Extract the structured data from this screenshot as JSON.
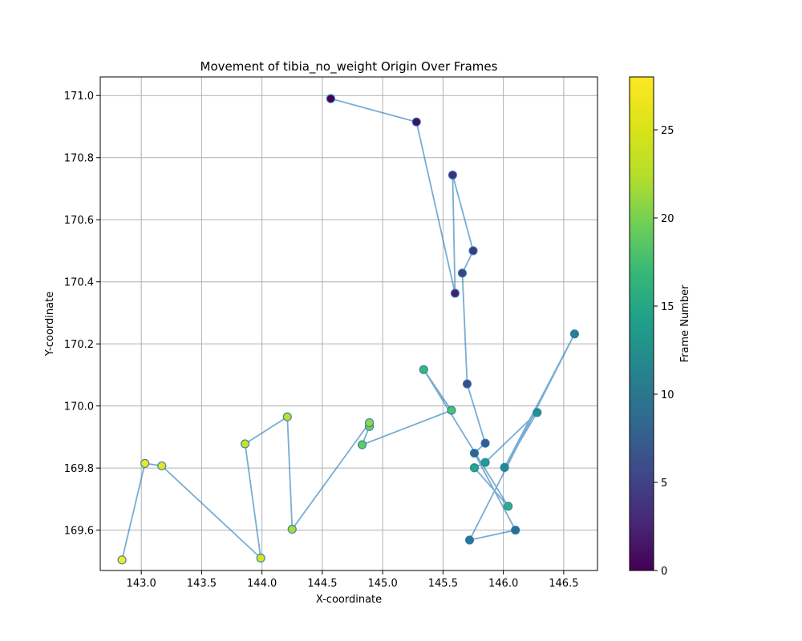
{
  "chart_data": {
    "type": "scatter",
    "title": "Movement of tibia_no_weight Origin Over Frames",
    "xlabel": "X-coordinate",
    "ylabel": "Y-coordinate",
    "xlim": [
      142.66,
      146.78
    ],
    "ylim": [
      169.47,
      171.06
    ],
    "xticks": [
      "143.0",
      "143.5",
      "144.0",
      "144.5",
      "145.0",
      "145.5",
      "146.0",
      "146.5"
    ],
    "yticks": [
      "169.6",
      "169.8",
      "170.0",
      "170.2",
      "170.4",
      "170.6",
      "170.8",
      "171.0"
    ],
    "grid": true,
    "line_color": "#1f77b4",
    "colormap": "viridis",
    "colorbar": {
      "label": "Frame Number",
      "range": [
        0,
        28
      ],
      "ticks": [
        "0",
        "5",
        "10",
        "15",
        "20",
        "25"
      ]
    },
    "points": [
      {
        "frame": 0,
        "x": 144.57,
        "y": 170.99
      },
      {
        "frame": 1,
        "x": 145.28,
        "y": 170.915
      },
      {
        "frame": 2,
        "x": 145.6,
        "y": 170.363
      },
      {
        "frame": 3,
        "x": 145.58,
        "y": 170.744
      },
      {
        "frame": 4,
        "x": 145.75,
        "y": 170.5
      },
      {
        "frame": 5,
        "x": 145.66,
        "y": 170.428
      },
      {
        "frame": 6,
        "x": 145.7,
        "y": 170.071
      },
      {
        "frame": 7,
        "x": 145.85,
        "y": 169.88
      },
      {
        "frame": 8,
        "x": 145.76,
        "y": 169.848
      },
      {
        "frame": 9,
        "x": 146.1,
        "y": 169.6
      },
      {
        "frame": 10,
        "x": 145.72,
        "y": 169.568
      },
      {
        "frame": 11,
        "x": 146.59,
        "y": 170.232
      },
      {
        "frame": 12,
        "x": 146.01,
        "y": 169.802
      },
      {
        "frame": 13,
        "x": 146.28,
        "y": 169.979
      },
      {
        "frame": 14,
        "x": 145.85,
        "y": 169.818
      },
      {
        "frame": 15,
        "x": 145.76,
        "y": 169.801
      },
      {
        "frame": 16,
        "x": 146.04,
        "y": 169.677
      },
      {
        "frame": 17,
        "x": 145.34,
        "y": 170.117
      },
      {
        "frame": 18,
        "x": 145.57,
        "y": 169.986
      },
      {
        "frame": 19,
        "x": 144.83,
        "y": 169.875
      },
      {
        "frame": 20,
        "x": 144.89,
        "y": 169.934
      },
      {
        "frame": 21,
        "x": 144.89,
        "y": 169.946
      },
      {
        "frame": 22,
        "x": 144.25,
        "y": 169.603
      },
      {
        "frame": 23,
        "x": 144.21,
        "y": 169.965
      },
      {
        "frame": 24,
        "x": 143.86,
        "y": 169.878
      },
      {
        "frame": 25,
        "x": 143.99,
        "y": 169.51
      },
      {
        "frame": 26,
        "x": 143.17,
        "y": 169.807
      },
      {
        "frame": 27,
        "x": 143.03,
        "y": 169.815
      },
      {
        "frame": 28,
        "x": 142.84,
        "y": 169.504
      }
    ]
  }
}
